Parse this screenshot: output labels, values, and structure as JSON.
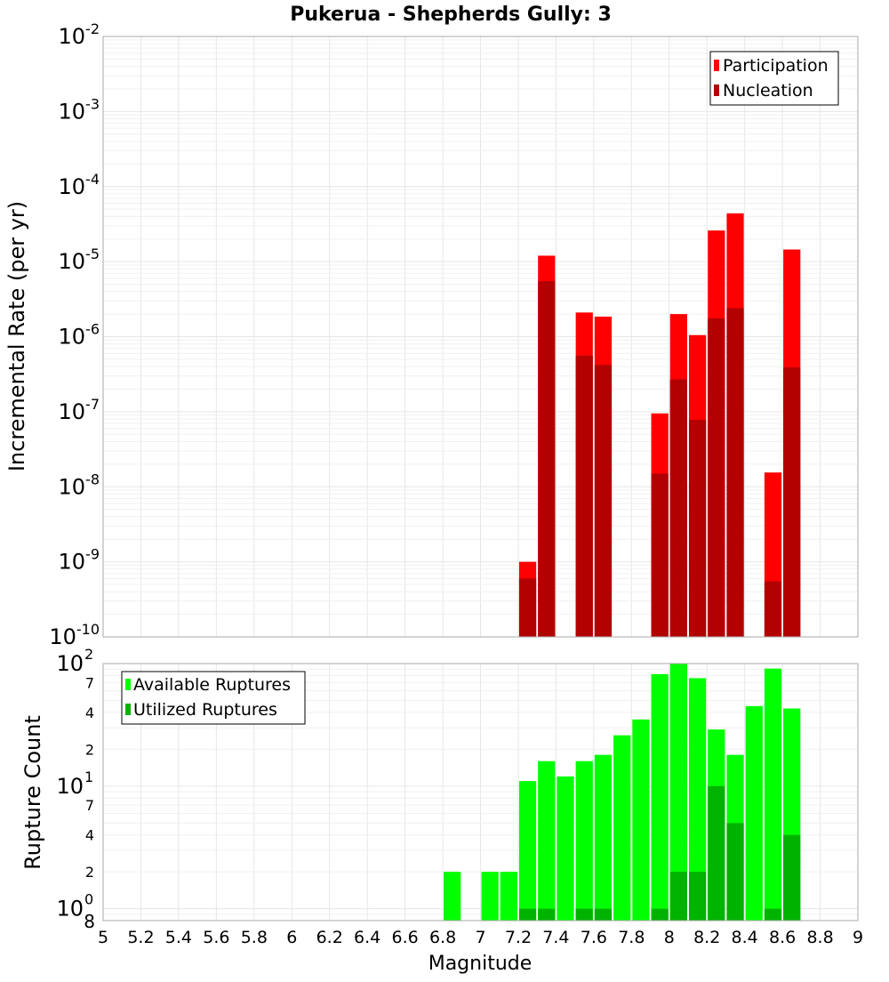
{
  "chart_data": [
    {
      "type": "bar",
      "title": "Pukerua - Shepherds Gully: 3",
      "xlabel": "",
      "ylabel": "Incremental Rate (per yr)",
      "yscale": "log",
      "ylim": [
        1e-10,
        0.01
      ],
      "xlim": [
        5,
        9
      ],
      "y_tick_base": "10",
      "y_tick_exponents": [
        "-10",
        "-9",
        "-8",
        "-7",
        "-6",
        "-5",
        "-4",
        "-3",
        "-2"
      ],
      "grid": true,
      "legend": "top-right",
      "series": [
        {
          "name": "Participation",
          "color": "#ff0000",
          "points": [
            {
              "x": 7.25,
              "y": 1e-09
            },
            {
              "x": 7.35,
              "y": 1.2e-05
            },
            {
              "x": 7.55,
              "y": 2.1e-06
            },
            {
              "x": 7.65,
              "y": 1.85e-06
            },
            {
              "x": 7.95,
              "y": 9.5e-08
            },
            {
              "x": 8.05,
              "y": 2e-06
            },
            {
              "x": 8.15,
              "y": 1.05e-06
            },
            {
              "x": 8.25,
              "y": 2.6e-05
            },
            {
              "x": 8.35,
              "y": 4.4e-05
            },
            {
              "x": 8.55,
              "y": 1.55e-08
            },
            {
              "x": 8.65,
              "y": 1.45e-05
            }
          ]
        },
        {
          "name": "Nucleation",
          "color": "#b30000",
          "points": [
            {
              "x": 7.25,
              "y": 6e-10
            },
            {
              "x": 7.35,
              "y": 5.5e-06
            },
            {
              "x": 7.55,
              "y": 5.6e-07
            },
            {
              "x": 7.65,
              "y": 4.2e-07
            },
            {
              "x": 7.95,
              "y": 1.5e-08
            },
            {
              "x": 8.05,
              "y": 2.7e-07
            },
            {
              "x": 8.15,
              "y": 7.8e-08
            },
            {
              "x": 8.25,
              "y": 1.75e-06
            },
            {
              "x": 8.35,
              "y": 2.4e-06
            },
            {
              "x": 8.55,
              "y": 5.5e-10
            },
            {
              "x": 8.65,
              "y": 3.9e-07
            }
          ]
        }
      ]
    },
    {
      "type": "bar",
      "title": "",
      "xlabel": "Magnitude",
      "ylabel": "Rupture Count",
      "yscale": "log",
      "ylim": [
        0.8,
        100
      ],
      "xlim": [
        5,
        9
      ],
      "x_ticks": [
        "5",
        "5.2",
        "5.4",
        "5.6",
        "5.8",
        "6",
        "6.2",
        "6.4",
        "6.6",
        "6.8",
        "7",
        "7.2",
        "7.4",
        "7.6",
        "7.8",
        "8",
        "8.2",
        "8.4",
        "8.6",
        "8.8",
        "9"
      ],
      "y_major_ticks": [
        {
          "value": 1,
          "base": "10",
          "exp": "0"
        },
        {
          "value": 10,
          "base": "10",
          "exp": "1"
        },
        {
          "value": 100,
          "base": "10",
          "exp": "2"
        }
      ],
      "y_minor_ticks": [
        {
          "value": 0.8,
          "label": "8"
        },
        {
          "value": 2,
          "label": "2"
        },
        {
          "value": 4,
          "label": "4"
        },
        {
          "value": 7,
          "label": "7"
        },
        {
          "value": 20,
          "label": "2"
        },
        {
          "value": 40,
          "label": "4"
        },
        {
          "value": 70,
          "label": "7"
        }
      ],
      "grid": true,
      "legend": "top-left",
      "series": [
        {
          "name": "Available Ruptures",
          "color": "#00ff00",
          "points": [
            {
              "x": 6.85,
              "y": 2
            },
            {
              "x": 7.05,
              "y": 2
            },
            {
              "x": 7.15,
              "y": 2
            },
            {
              "x": 7.25,
              "y": 11
            },
            {
              "x": 7.35,
              "y": 16
            },
            {
              "x": 7.45,
              "y": 12
            },
            {
              "x": 7.55,
              "y": 16
            },
            {
              "x": 7.65,
              "y": 18
            },
            {
              "x": 7.75,
              "y": 26
            },
            {
              "x": 7.85,
              "y": 35
            },
            {
              "x": 7.95,
              "y": 82
            },
            {
              "x": 8.05,
              "y": 100
            },
            {
              "x": 8.15,
              "y": 76
            },
            {
              "x": 8.25,
              "y": 29
            },
            {
              "x": 8.35,
              "y": 18
            },
            {
              "x": 8.45,
              "y": 45
            },
            {
              "x": 8.55,
              "y": 91
            },
            {
              "x": 8.65,
              "y": 43
            }
          ]
        },
        {
          "name": "Utilized Ruptures",
          "color": "#00b300",
          "points": [
            {
              "x": 7.25,
              "y": 1
            },
            {
              "x": 7.35,
              "y": 1
            },
            {
              "x": 7.55,
              "y": 1
            },
            {
              "x": 7.65,
              "y": 1
            },
            {
              "x": 7.95,
              "y": 1
            },
            {
              "x": 8.05,
              "y": 2
            },
            {
              "x": 8.15,
              "y": 2
            },
            {
              "x": 8.25,
              "y": 10
            },
            {
              "x": 8.35,
              "y": 5
            },
            {
              "x": 8.55,
              "y": 1
            },
            {
              "x": 8.65,
              "y": 4
            }
          ]
        }
      ]
    }
  ]
}
